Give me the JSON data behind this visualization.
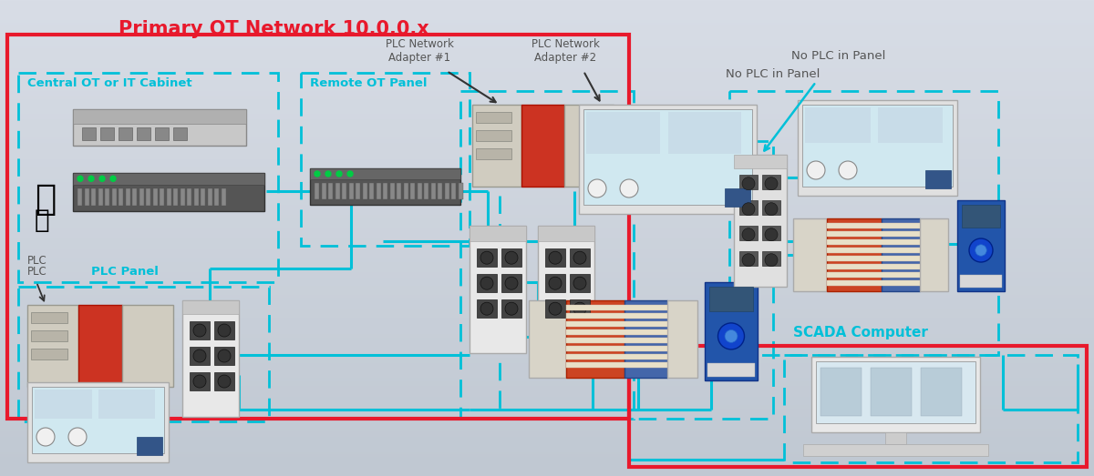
{
  "title": "Primary OT Network 10.0.0.x",
  "title_color": "#e8192c",
  "title_fontsize": 15,
  "bg_color": "#c8cfd8",
  "red": "#e8192c",
  "cyan": "#00c0d8",
  "dark_gray": "#4a4a4a",
  "labels": {
    "central_ot": "Central OT or IT Cabinet",
    "remote_ot": "Remote OT Panel",
    "plc_panel": "PLC Panel",
    "plc_label": "PLC",
    "plc_net_adapter1": "PLC Network\nAdapter #1",
    "plc_net_adapter2": "PLC Network\nAdapter #2",
    "no_plc": "No PLC in Panel",
    "scada": "SCADA Computer"
  },
  "label_colors": {
    "central_ot": "#00c0d8",
    "remote_ot": "#00c0d8",
    "plc_panel": "#00c0d8",
    "plc_label": "#555555",
    "plc_net_adapter1": "#555555",
    "plc_net_adapter2": "#555555",
    "no_plc": "#555555",
    "scada": "#00c0d8"
  }
}
